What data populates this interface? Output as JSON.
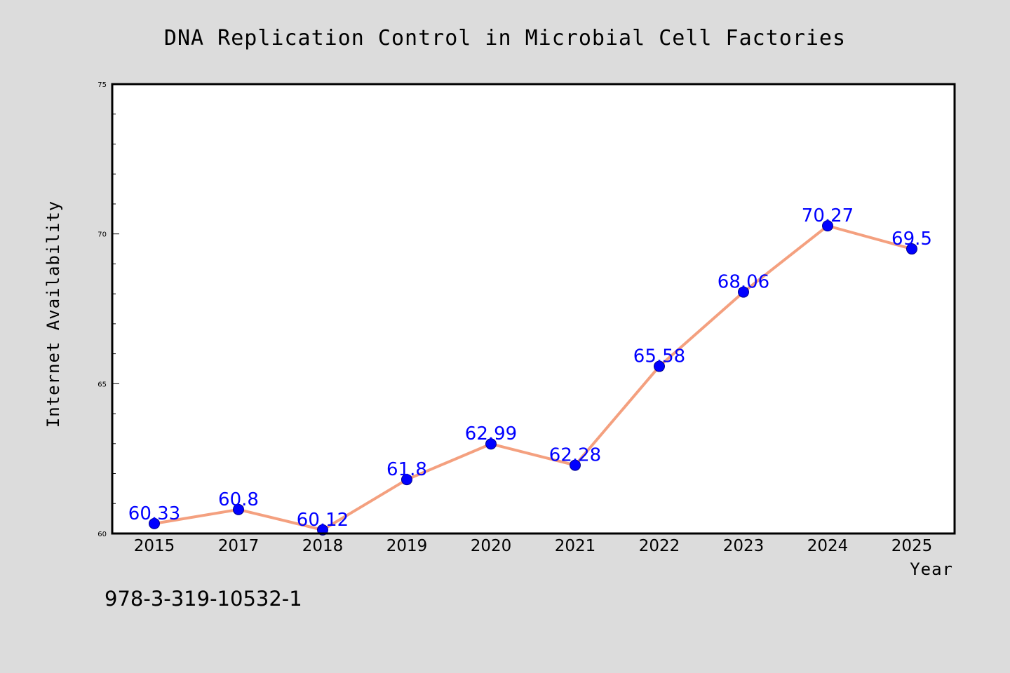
{
  "chart_data": {
    "type": "line",
    "title": "DNA Replication Control in Microbial Cell Factories",
    "xlabel": "Year",
    "ylabel": "Internet Availability",
    "categories": [
      "2015",
      "2017",
      "2018",
      "2019",
      "2020",
      "2021",
      "2022",
      "2023",
      "2024",
      "2025"
    ],
    "series": [
      {
        "values": [
          60.33,
          60.8,
          60.12,
          61.8,
          62.99,
          62.28,
          65.58,
          68.06,
          70.27,
          69.5
        ],
        "data_labels": [
          "60.33",
          "60.8",
          "60.12",
          "61.8",
          "62.99",
          "62.28",
          "65.58",
          "68.06",
          "70.27",
          "69.5"
        ]
      }
    ],
    "ylim": [
      60,
      75
    ],
    "y_ticks": [
      "60",
      "65",
      "70",
      "75"
    ],
    "grid": false,
    "legend": "none",
    "colors": {
      "line": "#f4a07f",
      "marker": "#0000ff",
      "data_label": "#0000ff",
      "background": "#dcdcdc",
      "plot_area": "#ffffff"
    }
  },
  "footnote": "978-3-319-10532-1"
}
